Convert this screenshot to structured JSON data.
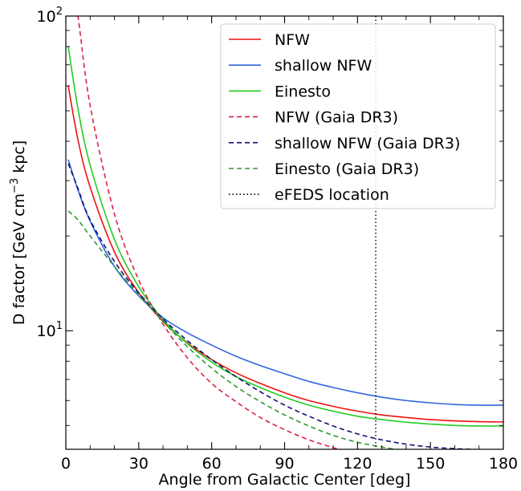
{
  "chart_data": {
    "type": "line",
    "xlabel": "Angle from Galactic Center [deg]",
    "ylabel_parts": {
      "main": "D factor [GeV cm",
      "sup": "−3",
      "tail": " kpc]"
    },
    "xlim": [
      0,
      180
    ],
    "ylim": [
      4.2,
      100
    ],
    "yscale": "log",
    "xticks": [
      0,
      30,
      60,
      90,
      120,
      150,
      180
    ],
    "xtick_labels": [
      "0",
      "30",
      "60",
      "90",
      "120",
      "150",
      "180"
    ],
    "yticks_major": [
      {
        "value": 10,
        "base": "10",
        "exp": "1"
      },
      {
        "value": 100,
        "base": "10",
        "exp": "2"
      }
    ],
    "legend_position": "top-right",
    "x": [
      1,
      5,
      10,
      20,
      30,
      40,
      50,
      60,
      70,
      80,
      90,
      100,
      110,
      120,
      130,
      140,
      150,
      160,
      170,
      180
    ],
    "series": [
      {
        "name": "NFW",
        "color": "#ee1111",
        "dash": "solid",
        "values": [
          60,
          40.4,
          28.6,
          17.8,
          13.2,
          10.7,
          9.15,
          8.1,
          7.35,
          6.8,
          6.35,
          6.0,
          5.75,
          5.55,
          5.4,
          5.3,
          5.22,
          5.17,
          5.14,
          5.13
        ]
      },
      {
        "name": "shallow NFW",
        "color": "#3366dd",
        "dash": "solid",
        "values": [
          35,
          28,
          22.3,
          16,
          12.9,
          11,
          9.85,
          9.0,
          8.3,
          7.75,
          7.3,
          6.9,
          6.6,
          6.35,
          6.15,
          6.0,
          5.9,
          5.83,
          5.8,
          5.8
        ]
      },
      {
        "name": "Einesto",
        "color": "#22cc22",
        "dash": "solid",
        "values": [
          80,
          50.7,
          33.6,
          19.5,
          13.8,
          10.85,
          9.1,
          7.95,
          7.15,
          6.6,
          6.15,
          5.8,
          5.55,
          5.35,
          5.22,
          5.12,
          5.05,
          5.0,
          4.98,
          4.98
        ]
      },
      {
        "name": "NFW (Gaia DR3)",
        "color": "#dd2244",
        "dash": "dashed",
        "values": [
          160,
          100,
          52,
          23.5,
          14.5,
          10.5,
          8.2,
          6.8,
          5.95,
          5.3,
          4.85,
          4.5,
          4.25,
          4.05,
          3.9,
          3.8,
          3.72,
          3.68,
          3.66,
          3.65
        ]
      },
      {
        "name": "shallow NFW (Gaia DR3)",
        "color": "#111177",
        "dash": "dashed",
        "values": [
          34,
          28.3,
          22.5,
          16.6,
          13.2,
          10.9,
          9.3,
          8.1,
          7.15,
          6.4,
          5.8,
          5.35,
          4.98,
          4.7,
          4.5,
          4.36,
          4.27,
          4.22,
          4.19,
          4.18
        ]
      },
      {
        "name": "Einesto (Gaia DR3)",
        "color": "#339933",
        "dash": "dashed",
        "values": [
          24,
          22.5,
          20,
          16,
          13,
          10.7,
          8.9,
          7.6,
          6.65,
          5.95,
          5.4,
          4.98,
          4.65,
          4.42,
          4.27,
          4.15,
          4.07,
          4.02,
          3.99,
          3.98
        ]
      }
    ],
    "vline": {
      "name": "eFEDS location",
      "x": 127.5,
      "color": "#000000",
      "dash": "dotted"
    }
  }
}
